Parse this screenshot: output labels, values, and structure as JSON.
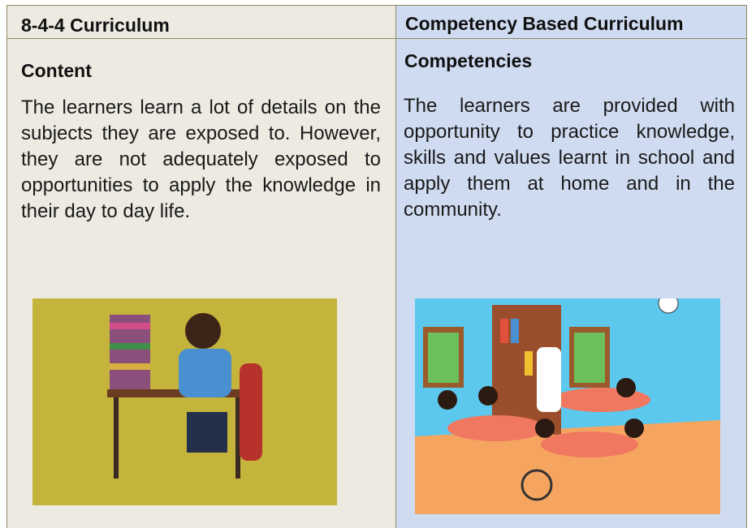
{
  "table": {
    "header": [
      "8-4-4 Curriculum",
      "Competency Based Curriculum"
    ],
    "rows": [
      [
        "Content",
        "Competencies"
      ],
      [
        "The learners learn a lot of details on the subjects they are exposed to. However, they are not adequately exposed to opportunities to apply the knowledge in their day to day life.",
        "The learners are provided with opportunity to practice knowledge, skills and values learnt in school and apply them at home and in the community."
      ]
    ]
  }
}
